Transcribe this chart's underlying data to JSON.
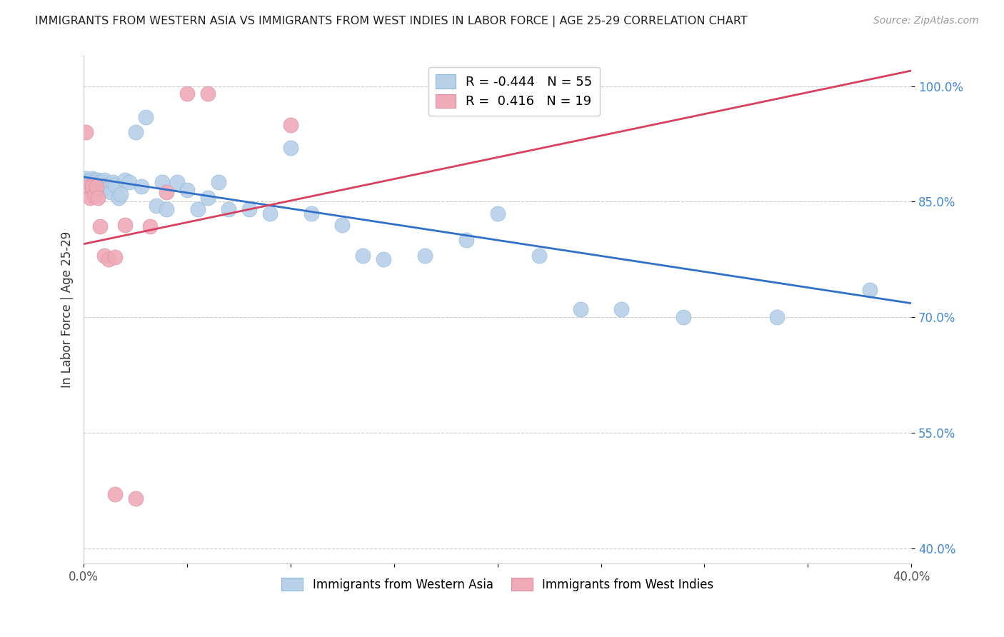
{
  "title": "IMMIGRANTS FROM WESTERN ASIA VS IMMIGRANTS FROM WEST INDIES IN LABOR FORCE | AGE 25-29 CORRELATION CHART",
  "source": "Source: ZipAtlas.com",
  "ylabel": "In Labor Force | Age 25-29",
  "xlim": [
    0.0,
    0.4
  ],
  "ylim": [
    0.38,
    1.04
  ],
  "xticks": [
    0.0,
    0.05,
    0.1,
    0.15,
    0.2,
    0.25,
    0.3,
    0.35,
    0.4
  ],
  "xticklabels": [
    "0.0%",
    "",
    "",
    "",
    "",
    "",
    "",
    "",
    "40.0%"
  ],
  "yticks": [
    0.4,
    0.55,
    0.7,
    0.85,
    1.0
  ],
  "yticklabels": [
    "40.0%",
    "55.0%",
    "70.0%",
    "85.0%",
    "100.0%"
  ],
  "blue_R": -0.444,
  "blue_N": 55,
  "pink_R": 0.416,
  "pink_N": 19,
  "blue_color": "#b8d0e8",
  "pink_color": "#f0aab8",
  "blue_line_color": "#3070c8",
  "pink_line_color": "#d84060",
  "legend_label_blue": "Immigrants from Western Asia",
  "legend_label_pink": "Immigrants from West Indies",
  "blue_line_x": [
    0.0,
    0.4
  ],
  "blue_line_y": [
    0.882,
    0.718
  ],
  "pink_line_x": [
    0.0,
    0.4
  ],
  "pink_line_y": [
    0.795,
    1.02
  ],
  "blue_points_x": [
    0.001,
    0.002,
    0.002,
    0.003,
    0.003,
    0.004,
    0.004,
    0.005,
    0.005,
    0.006,
    0.006,
    0.007,
    0.007,
    0.008,
    0.008,
    0.009,
    0.01,
    0.01,
    0.011,
    0.012,
    0.013,
    0.014,
    0.015,
    0.017,
    0.018,
    0.02,
    0.022,
    0.025,
    0.028,
    0.03,
    0.035,
    0.038,
    0.04,
    0.045,
    0.05,
    0.055,
    0.06,
    0.065,
    0.07,
    0.08,
    0.09,
    0.1,
    0.11,
    0.125,
    0.135,
    0.145,
    0.165,
    0.185,
    0.2,
    0.22,
    0.24,
    0.26,
    0.29,
    0.335,
    0.38
  ],
  "blue_points_y": [
    0.88,
    0.877,
    0.871,
    0.875,
    0.868,
    0.88,
    0.872,
    0.878,
    0.875,
    0.873,
    0.868,
    0.878,
    0.871,
    0.865,
    0.875,
    0.872,
    0.875,
    0.878,
    0.872,
    0.868,
    0.862,
    0.875,
    0.872,
    0.855,
    0.86,
    0.878,
    0.875,
    0.94,
    0.87,
    0.96,
    0.845,
    0.875,
    0.84,
    0.875,
    0.865,
    0.84,
    0.855,
    0.875,
    0.84,
    0.84,
    0.835,
    0.92,
    0.835,
    0.82,
    0.78,
    0.775,
    0.78,
    0.8,
    0.835,
    0.78,
    0.71,
    0.71,
    0.7,
    0.7,
    0.735
  ],
  "pink_points_x": [
    0.001,
    0.002,
    0.003,
    0.004,
    0.005,
    0.006,
    0.007,
    0.008,
    0.01,
    0.012,
    0.015,
    0.04,
    0.05,
    0.06,
    0.1,
    0.015,
    0.025,
    0.032,
    0.02
  ],
  "pink_points_y": [
    0.94,
    0.87,
    0.855,
    0.87,
    0.858,
    0.87,
    0.855,
    0.818,
    0.78,
    0.775,
    0.778,
    0.862,
    0.99,
    0.99,
    0.95,
    0.47,
    0.465,
    0.818,
    0.82
  ]
}
